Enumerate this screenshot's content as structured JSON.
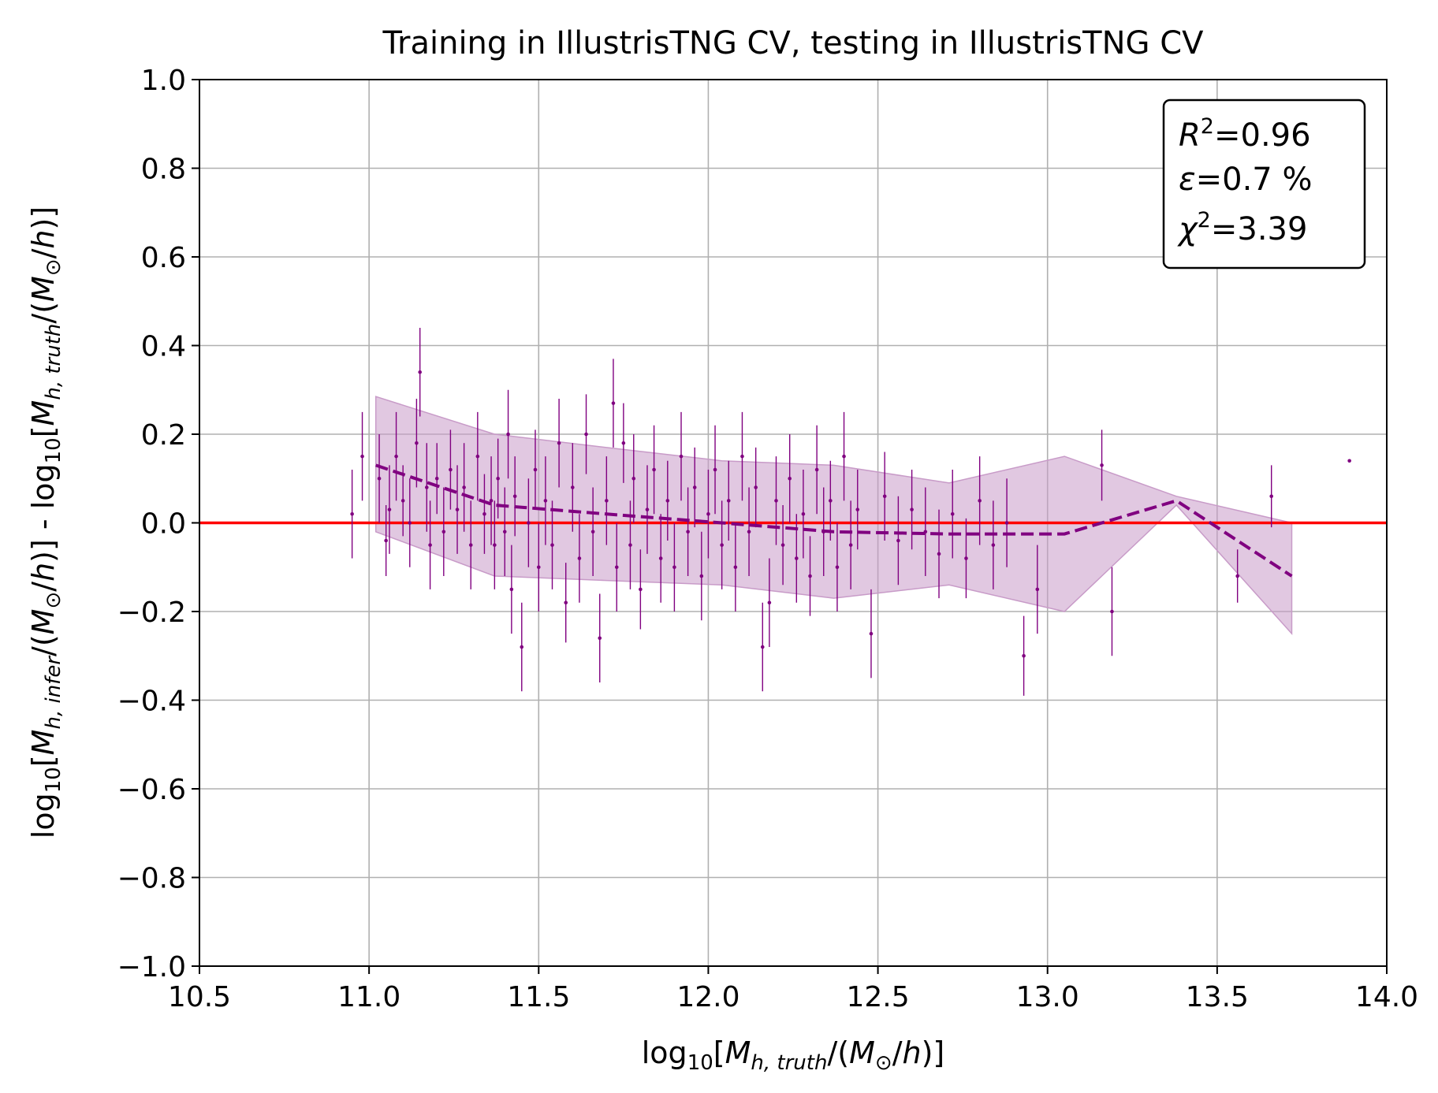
{
  "chart_data": {
    "type": "scatter",
    "title": "Training in IllustrisTNG CV, testing in IllustrisTNG CV",
    "xlabel": "log10[Mh,truth/(M⊙/h)]",
    "ylabel": "log10[Mh,infer/(M⊙/h)] - log10[Mh,truth/(M⊙/h)]",
    "xlim": [
      10.5,
      14.0
    ],
    "ylim": [
      -1.0,
      1.0
    ],
    "grid": true,
    "x_ticks": [
      "10.5",
      "11.0",
      "11.5",
      "12.0",
      "12.5",
      "13.0",
      "13.5",
      "14.0"
    ],
    "y_ticks": [
      "−1.0",
      "−0.8",
      "−0.6",
      "−0.4",
      "−0.2",
      "0.0",
      "0.2",
      "0.4",
      "0.6",
      "0.8",
      "1.0"
    ],
    "colors": {
      "points": "#800080",
      "mean_line": "#800080",
      "band": "#c89bc8",
      "reference": "#ff0000",
      "grid": "#b0b0b0"
    },
    "stats_box": {
      "r2": "0.96",
      "epsilon": "0.7 %",
      "chi2": "3.39"
    },
    "reference_line": {
      "y": 0.0
    },
    "mean_line": {
      "x": [
        11.02,
        11.37,
        11.7,
        12.04,
        12.37,
        12.71,
        13.05,
        13.38,
        13.72
      ],
      "y": [
        0.13,
        0.04,
        0.02,
        0.0,
        -0.02,
        -0.025,
        -0.025,
        0.05,
        -0.12
      ]
    },
    "std_band": {
      "x": [
        11.02,
        11.37,
        11.7,
        12.04,
        12.37,
        12.71,
        13.05,
        13.38,
        13.72
      ],
      "upper": [
        0.285,
        0.2,
        0.17,
        0.14,
        0.13,
        0.09,
        0.15,
        0.06,
        0.0
      ],
      "lower": [
        -0.02,
        -0.12,
        -0.13,
        -0.14,
        -0.17,
        -0.14,
        -0.2,
        0.04,
        -0.25
      ]
    },
    "points": [
      {
        "x": 10.95,
        "y": 0.02,
        "err": 0.1
      },
      {
        "x": 10.98,
        "y": 0.15,
        "err": 0.1
      },
      {
        "x": 11.03,
        "y": 0.1,
        "err": 0.1
      },
      {
        "x": 11.05,
        "y": -0.04,
        "err": 0.08
      },
      {
        "x": 11.06,
        "y": 0.03,
        "err": 0.1
      },
      {
        "x": 11.08,
        "y": 0.15,
        "err": 0.1
      },
      {
        "x": 11.1,
        "y": 0.05,
        "err": 0.08
      },
      {
        "x": 11.12,
        "y": 0.0,
        "err": 0.1
      },
      {
        "x": 11.14,
        "y": 0.18,
        "err": 0.1
      },
      {
        "x": 11.15,
        "y": 0.34,
        "err": 0.1
      },
      {
        "x": 11.17,
        "y": 0.08,
        "err": 0.1
      },
      {
        "x": 11.18,
        "y": -0.05,
        "err": 0.1
      },
      {
        "x": 11.2,
        "y": 0.1,
        "err": 0.08
      },
      {
        "x": 11.22,
        "y": -0.02,
        "err": 0.1
      },
      {
        "x": 11.24,
        "y": 0.12,
        "err": 0.09
      },
      {
        "x": 11.26,
        "y": 0.03,
        "err": 0.1
      },
      {
        "x": 11.28,
        "y": 0.08,
        "err": 0.1
      },
      {
        "x": 11.3,
        "y": -0.05,
        "err": 0.1
      },
      {
        "x": 11.32,
        "y": 0.15,
        "err": 0.1
      },
      {
        "x": 11.34,
        "y": 0.02,
        "err": 0.09
      },
      {
        "x": 11.36,
        "y": 0.05,
        "err": 0.1
      },
      {
        "x": 11.37,
        "y": -0.05,
        "err": 0.1
      },
      {
        "x": 11.38,
        "y": 0.1,
        "err": 0.09
      },
      {
        "x": 11.4,
        "y": -0.02,
        "err": 0.1
      },
      {
        "x": 11.41,
        "y": 0.2,
        "err": 0.1
      },
      {
        "x": 11.42,
        "y": -0.15,
        "err": 0.1
      },
      {
        "x": 11.43,
        "y": 0.06,
        "err": 0.09
      },
      {
        "x": 11.45,
        "y": -0.28,
        "err": 0.1
      },
      {
        "x": 11.47,
        "y": 0.0,
        "err": 0.1
      },
      {
        "x": 11.49,
        "y": 0.12,
        "err": 0.09
      },
      {
        "x": 11.5,
        "y": -0.1,
        "err": 0.1
      },
      {
        "x": 11.52,
        "y": 0.05,
        "err": 0.1
      },
      {
        "x": 11.54,
        "y": -0.05,
        "err": 0.1
      },
      {
        "x": 11.56,
        "y": 0.18,
        "err": 0.1
      },
      {
        "x": 11.58,
        "y": -0.18,
        "err": 0.09
      },
      {
        "x": 11.6,
        "y": 0.08,
        "err": 0.1
      },
      {
        "x": 11.62,
        "y": -0.08,
        "err": 0.1
      },
      {
        "x": 11.64,
        "y": 0.2,
        "err": 0.09
      },
      {
        "x": 11.66,
        "y": -0.02,
        "err": 0.1
      },
      {
        "x": 11.68,
        "y": -0.26,
        "err": 0.1
      },
      {
        "x": 11.7,
        "y": 0.05,
        "err": 0.1
      },
      {
        "x": 11.72,
        "y": 0.27,
        "err": 0.1
      },
      {
        "x": 11.73,
        "y": -0.1,
        "err": 0.1
      },
      {
        "x": 11.75,
        "y": 0.18,
        "err": 0.09
      },
      {
        "x": 11.77,
        "y": -0.05,
        "err": 0.1
      },
      {
        "x": 11.78,
        "y": 0.1,
        "err": 0.1
      },
      {
        "x": 11.8,
        "y": -0.15,
        "err": 0.09
      },
      {
        "x": 11.82,
        "y": 0.03,
        "err": 0.1
      },
      {
        "x": 11.84,
        "y": 0.12,
        "err": 0.1
      },
      {
        "x": 11.86,
        "y": -0.08,
        "err": 0.1
      },
      {
        "x": 11.88,
        "y": 0.05,
        "err": 0.09
      },
      {
        "x": 11.9,
        "y": -0.1,
        "err": 0.1
      },
      {
        "x": 11.92,
        "y": 0.15,
        "err": 0.1
      },
      {
        "x": 11.94,
        "y": -0.02,
        "err": 0.1
      },
      {
        "x": 11.96,
        "y": 0.08,
        "err": 0.09
      },
      {
        "x": 11.98,
        "y": -0.12,
        "err": 0.1
      },
      {
        "x": 12.0,
        "y": 0.02,
        "err": 0.1
      },
      {
        "x": 12.02,
        "y": 0.12,
        "err": 0.1
      },
      {
        "x": 12.04,
        "y": -0.05,
        "err": 0.1
      },
      {
        "x": 12.06,
        "y": 0.05,
        "err": 0.09
      },
      {
        "x": 12.08,
        "y": -0.1,
        "err": 0.1
      },
      {
        "x": 12.1,
        "y": 0.15,
        "err": 0.1
      },
      {
        "x": 12.12,
        "y": -0.02,
        "err": 0.1
      },
      {
        "x": 12.14,
        "y": 0.08,
        "err": 0.09
      },
      {
        "x": 12.16,
        "y": -0.28,
        "err": 0.1
      },
      {
        "x": 12.18,
        "y": -0.18,
        "err": 0.1
      },
      {
        "x": 12.2,
        "y": 0.05,
        "err": 0.1
      },
      {
        "x": 12.22,
        "y": -0.05,
        "err": 0.09
      },
      {
        "x": 12.24,
        "y": 0.1,
        "err": 0.1
      },
      {
        "x": 12.26,
        "y": -0.08,
        "err": 0.1
      },
      {
        "x": 12.28,
        "y": 0.02,
        "err": 0.1
      },
      {
        "x": 12.3,
        "y": -0.12,
        "err": 0.09
      },
      {
        "x": 12.32,
        "y": 0.12,
        "err": 0.1
      },
      {
        "x": 12.34,
        "y": -0.02,
        "err": 0.1
      },
      {
        "x": 12.36,
        "y": 0.05,
        "err": 0.09
      },
      {
        "x": 12.38,
        "y": -0.1,
        "err": 0.1
      },
      {
        "x": 12.4,
        "y": 0.15,
        "err": 0.1
      },
      {
        "x": 12.42,
        "y": -0.05,
        "err": 0.1
      },
      {
        "x": 12.44,
        "y": 0.03,
        "err": 0.09
      },
      {
        "x": 12.48,
        "y": -0.25,
        "err": 0.1
      },
      {
        "x": 12.52,
        "y": 0.06,
        "err": 0.1
      },
      {
        "x": 12.56,
        "y": -0.04,
        "err": 0.1
      },
      {
        "x": 12.6,
        "y": 0.03,
        "err": 0.09
      },
      {
        "x": 12.64,
        "y": -0.02,
        "err": 0.1
      },
      {
        "x": 12.68,
        "y": -0.07,
        "err": 0.1
      },
      {
        "x": 12.72,
        "y": 0.02,
        "err": 0.1
      },
      {
        "x": 12.76,
        "y": -0.08,
        "err": 0.09
      },
      {
        "x": 12.8,
        "y": 0.05,
        "err": 0.1
      },
      {
        "x": 12.84,
        "y": -0.05,
        "err": 0.1
      },
      {
        "x": 12.88,
        "y": 0.0,
        "err": 0.1
      },
      {
        "x": 12.93,
        "y": -0.3,
        "err": 0.09
      },
      {
        "x": 12.97,
        "y": -0.15,
        "err": 0.1
      },
      {
        "x": 13.16,
        "y": 0.13,
        "err": 0.08
      },
      {
        "x": 13.19,
        "y": -0.2,
        "err": 0.1
      },
      {
        "x": 13.56,
        "y": -0.12,
        "err": 0.06
      },
      {
        "x": 13.66,
        "y": 0.06,
        "err": 0.07
      },
      {
        "x": 13.89,
        "y": 0.14,
        "err": 0.0
      }
    ]
  }
}
